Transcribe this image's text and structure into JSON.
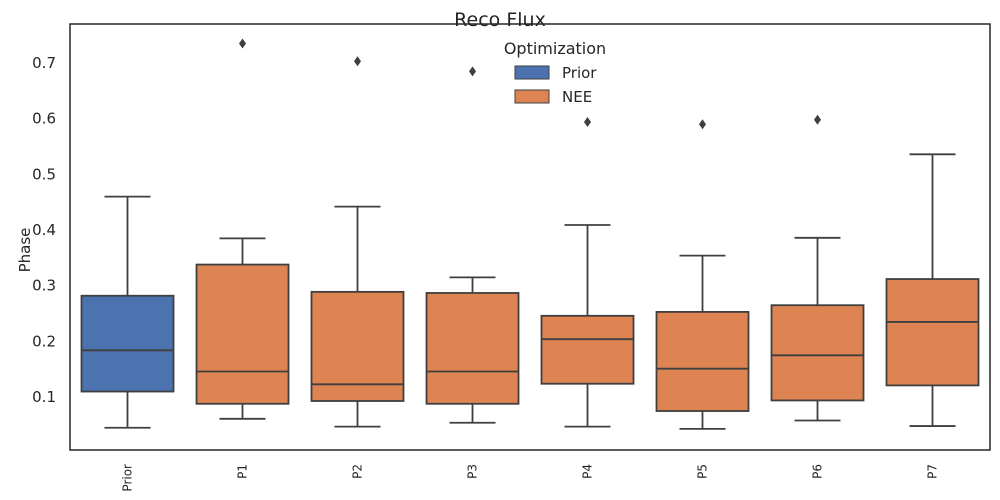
{
  "chart_data": {
    "type": "box",
    "title": "Reco Flux",
    "xlabel": "",
    "ylabel": "Phase",
    "ylim": [
      0.005,
      0.77
    ],
    "yticks": [
      0.1,
      0.2,
      0.3,
      0.4,
      0.5,
      0.6,
      0.7
    ],
    "grid": false,
    "legend": {
      "title": "Optimization",
      "placement": "top-center",
      "entries": [
        {
          "name": "Prior",
          "color": "#4c72b0"
        },
        {
          "name": "NEE",
          "color": "#dd8452"
        }
      ]
    },
    "categories": [
      "Prior",
      "P1",
      "P2",
      "P3",
      "P4",
      "P5",
      "P6",
      "P7"
    ],
    "boxes": [
      {
        "category": "Prior",
        "group": "Prior",
        "whisker_low": 0.045,
        "q1": 0.11,
        "median": 0.184,
        "q3": 0.282,
        "whisker_high": 0.46,
        "outliers": []
      },
      {
        "category": "P1",
        "group": "NEE",
        "whisker_low": 0.061,
        "q1": 0.088,
        "median": 0.146,
        "q3": 0.338,
        "whisker_high": 0.385,
        "outliers": [
          0.735
        ]
      },
      {
        "category": "P2",
        "group": "NEE",
        "whisker_low": 0.047,
        "q1": 0.093,
        "median": 0.123,
        "q3": 0.289,
        "whisker_high": 0.442,
        "outliers": [
          0.703
        ]
      },
      {
        "category": "P3",
        "group": "NEE",
        "whisker_low": 0.054,
        "q1": 0.088,
        "median": 0.146,
        "q3": 0.287,
        "whisker_high": 0.315,
        "outliers": [
          0.685
        ]
      },
      {
        "category": "P4",
        "group": "NEE",
        "whisker_low": 0.047,
        "q1": 0.124,
        "median": 0.204,
        "q3": 0.246,
        "whisker_high": 0.409,
        "outliers": [
          0.594
        ]
      },
      {
        "category": "P5",
        "group": "NEE",
        "whisker_low": 0.043,
        "q1": 0.075,
        "median": 0.151,
        "q3": 0.253,
        "whisker_high": 0.354,
        "outliers": [
          0.59
        ]
      },
      {
        "category": "P6",
        "group": "NEE",
        "whisker_low": 0.058,
        "q1": 0.094,
        "median": 0.175,
        "q3": 0.265,
        "whisker_high": 0.386,
        "outliers": [
          0.598
        ]
      },
      {
        "category": "P7",
        "group": "NEE",
        "whisker_low": 0.048,
        "q1": 0.121,
        "median": 0.235,
        "q3": 0.312,
        "whisker_high": 0.536,
        "outliers": []
      }
    ],
    "colors": {
      "Prior": "#4c72b0",
      "NEE": "#dd8452",
      "line": "#3f3f3f",
      "axis": "#262626"
    }
  }
}
